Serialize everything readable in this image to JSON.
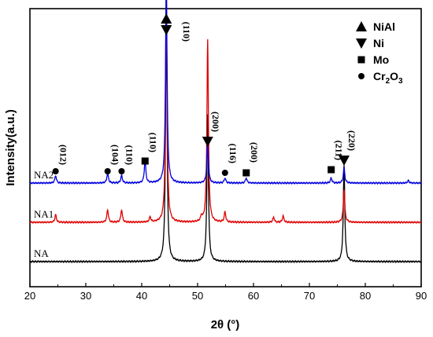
{
  "chart_data": {
    "type": "line",
    "title": "",
    "xlabel": "2θ (°)",
    "ylabel": "Intensity(a.u.)",
    "xlim": [
      20,
      90
    ],
    "xticks": [
      20,
      30,
      40,
      50,
      60,
      70,
      80,
      90
    ],
    "y_ticks_shown": false,
    "grid": false,
    "series": [
      {
        "name": "NA",
        "color": "#000000",
        "peaks": [
          {
            "x": 44.4,
            "height": 1.0
          },
          {
            "x": 51.8,
            "height": 0.58
          },
          {
            "x": 76.2,
            "height": 0.38
          }
        ]
      },
      {
        "name": "NA1",
        "color": "#e00000",
        "peaks": [
          {
            "x": 24.6,
            "height": 0.03
          },
          {
            "x": 33.9,
            "height": 0.05
          },
          {
            "x": 36.4,
            "height": 0.05
          },
          {
            "x": 41.5,
            "height": 0.02
          },
          {
            "x": 44.4,
            "height": 0.92
          },
          {
            "x": 50.7,
            "height": 0.02
          },
          {
            "x": 51.8,
            "height": 0.72
          },
          {
            "x": 54.9,
            "height": 0.04
          },
          {
            "x": 63.6,
            "height": 0.02
          },
          {
            "x": 65.3,
            "height": 0.025
          },
          {
            "x": 76.2,
            "height": 0.13
          }
        ]
      },
      {
        "name": "NA2",
        "color": "#0000e0",
        "peaks": [
          {
            "x": 24.6,
            "height": 0.03
          },
          {
            "x": 33.9,
            "height": 0.04
          },
          {
            "x": 36.4,
            "height": 0.03
          },
          {
            "x": 40.6,
            "height": 0.09
          },
          {
            "x": 44.4,
            "height": 0.82
          },
          {
            "x": 51.8,
            "height": 0.16
          },
          {
            "x": 54.9,
            "height": 0.02
          },
          {
            "x": 58.7,
            "height": 0.02
          },
          {
            "x": 73.9,
            "height": 0.02
          },
          {
            "x": 76.2,
            "height": 0.06
          },
          {
            "x": 87.7,
            "height": 0.01
          }
        ]
      }
    ],
    "legend": {
      "placement": "top-right",
      "entries": [
        {
          "symbol": "triangle-up",
          "label": "NiAl"
        },
        {
          "symbol": "triangle-down",
          "label": "Ni"
        },
        {
          "symbol": "square",
          "label": "Mo"
        },
        {
          "symbol": "circle",
          "label": "Cr",
          "sub": "2",
          "label2": "O",
          "sub2": "3"
        }
      ]
    },
    "annotations": [
      {
        "text": "(110)",
        "symbol": "triangle-both",
        "x": 44.4
      },
      {
        "text": "(012)",
        "symbol": "circle",
        "x": 24.6
      },
      {
        "text": "(104)",
        "symbol": "circle",
        "x": 33.9
      },
      {
        "text": "(110)",
        "symbol": "circle",
        "x": 36.4
      },
      {
        "text": "(110)",
        "symbol": "square",
        "x": 40.6
      },
      {
        "text": "(200)",
        "symbol": "triangle-down",
        "x": 51.8
      },
      {
        "text": "(116)",
        "symbol": "circle",
        "x": 54.9
      },
      {
        "text": "(200)",
        "symbol": "square",
        "x": 58.7
      },
      {
        "text": "(211)",
        "symbol": "square",
        "x": 73.9
      },
      {
        "text": "(220)",
        "symbol": "triangle-down",
        "x": 76.2
      }
    ]
  }
}
